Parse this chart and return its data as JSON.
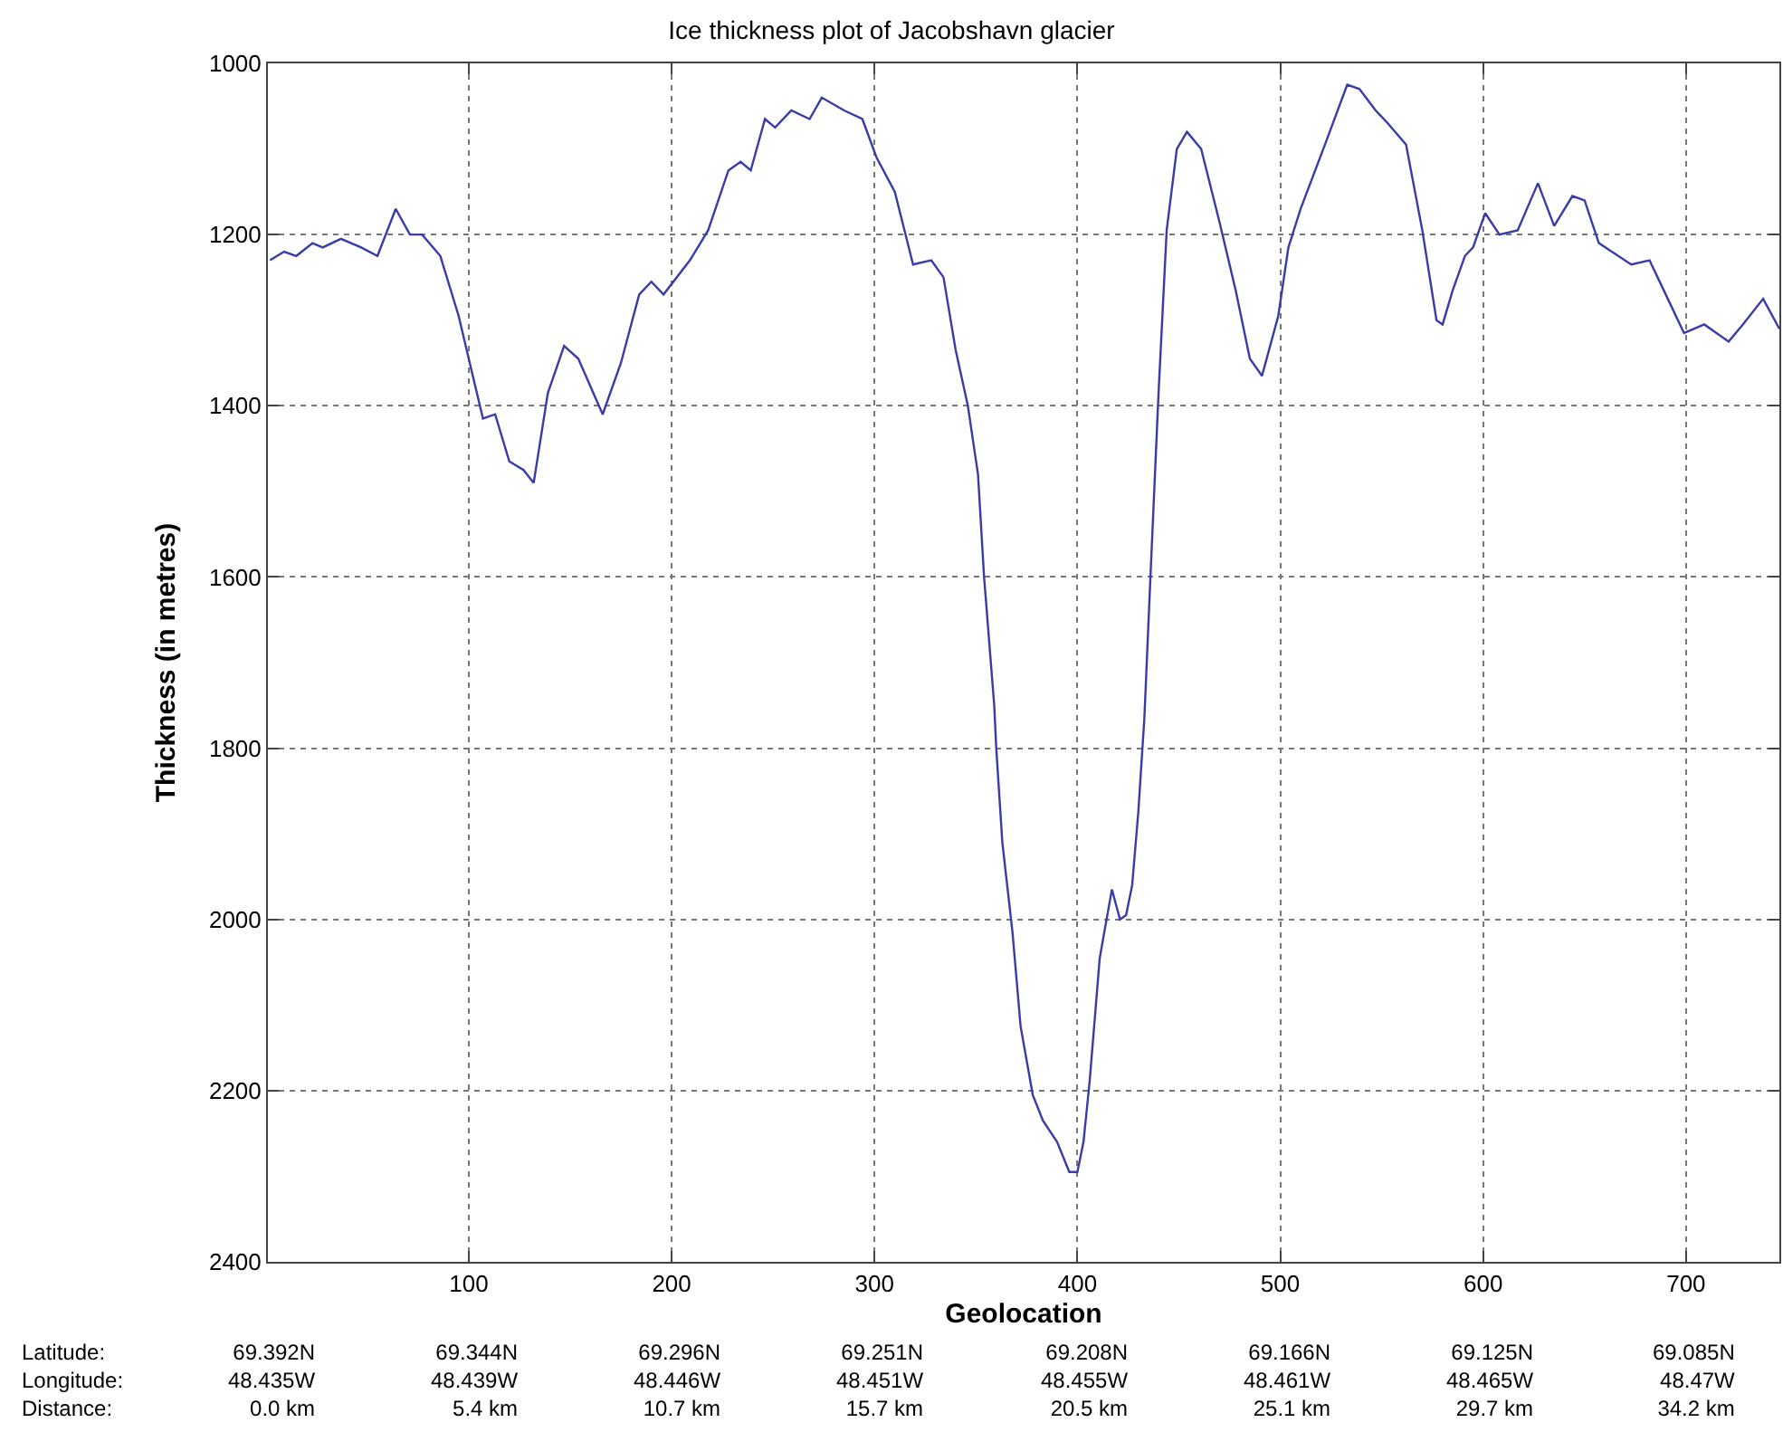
{
  "chart_data": {
    "type": "line",
    "title": "Ice thickness plot of Jacobshavn glacier",
    "xlabel": "Geolocation",
    "ylabel": "Thickness (in metres)",
    "x": [
      2,
      9,
      15,
      23,
      28,
      37,
      47,
      55,
      64,
      71,
      77,
      86,
      95,
      102,
      107,
      113,
      120,
      127,
      132,
      139,
      147,
      154,
      166,
      175,
      184,
      190,
      196,
      209,
      218,
      228,
      234,
      239,
      246,
      251,
      259,
      268,
      274,
      285,
      294,
      301,
      310,
      319,
      328,
      334,
      340,
      346,
      351,
      354,
      359,
      360,
      363,
      368,
      372,
      378,
      383,
      390,
      396,
      400,
      403,
      406,
      411,
      417,
      421,
      424,
      427,
      430,
      433,
      436,
      440,
      444,
      449,
      454,
      461,
      470,
      478,
      485,
      491,
      499,
      504,
      510,
      522,
      533,
      539,
      547,
      553,
      562,
      570,
      577,
      580,
      585,
      591,
      595,
      601,
      608,
      617,
      627,
      635,
      644,
      650,
      657,
      673,
      682,
      688,
      699,
      709,
      721,
      728,
      738,
      746
    ],
    "series": [
      {
        "color": "#3a3aa8",
        "values": [
          1230,
          1220,
          1225,
          1210,
          1215,
          1205,
          1215,
          1225,
          1170,
          1200,
          1200,
          1225,
          1295,
          1365,
          1415,
          1410,
          1465,
          1475,
          1490,
          1385,
          1330,
          1345,
          1410,
          1350,
          1270,
          1255,
          1270,
          1230,
          1195,
          1125,
          1115,
          1125,
          1065,
          1075,
          1055,
          1065,
          1040,
          1055,
          1065,
          1110,
          1150,
          1235,
          1230,
          1250,
          1335,
          1400,
          1480,
          1600,
          1750,
          1800,
          1910,
          2015,
          2125,
          2205,
          2235,
          2260,
          2295,
          2295,
          2260,
          2190,
          2045,
          1965,
          2000,
          1995,
          1960,
          1875,
          1765,
          1600,
          1385,
          1195,
          1100,
          1080,
          1100,
          1185,
          1265,
          1345,
          1365,
          1295,
          1215,
          1170,
          1095,
          1025,
          1030,
          1055,
          1070,
          1095,
          1195,
          1300,
          1305,
          1265,
          1225,
          1215,
          1175,
          1200,
          1195,
          1140,
          1190,
          1155,
          1160,
          1210,
          1235,
          1230,
          1260,
          1315,
          1305,
          1325,
          1305,
          1275,
          1310
        ]
      }
    ],
    "xlim": [
      1,
      746
    ],
    "ylim": [
      2400,
      1000
    ],
    "xticks": [
      100,
      200,
      300,
      400,
      500,
      600,
      700
    ],
    "yticks": [
      1000,
      1200,
      1400,
      1600,
      1800,
      2000,
      2200,
      2400
    ],
    "grid": true,
    "line_style": "solid",
    "annotations": [
      "Latitude:\nLongitude:\nDistance:",
      "69.392N\n48.435W\n0.0 km",
      "69.344N\n48.439W\n5.4 km",
      "69.296N\n48.446W\n10.7 km",
      "69.251N\n48.451W\n15.7 km",
      "69.208N\n48.455W\n20.5 km",
      "69.166N\n48.461W\n25.1 km",
      "69.125N\n48.465W\n29.7 km",
      "69.085N\n48.47W\n34.2 km"
    ]
  }
}
